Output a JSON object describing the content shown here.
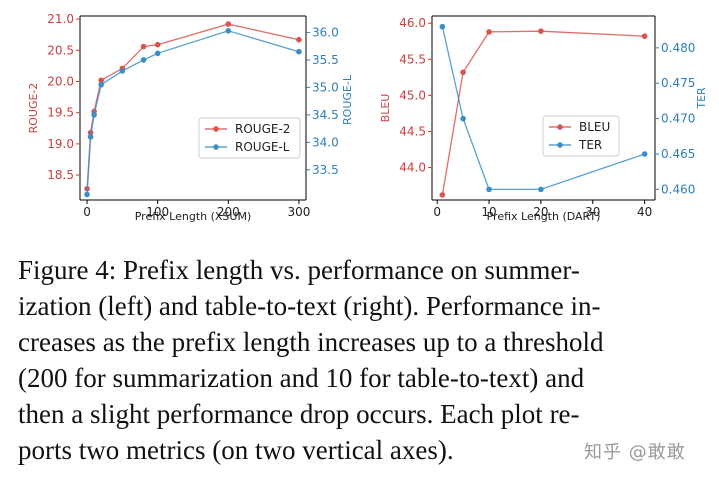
{
  "chart_data": [
    {
      "type": "line",
      "xlabel": "Prefix Length (XSUM)",
      "ylabel_left": "ROUGE-2",
      "ylabel_right": "ROUGE-L",
      "xlim": [
        -10,
        310
      ],
      "xticks": [
        0,
        100,
        200,
        300
      ],
      "ylim_left": [
        18.1,
        21.05
      ],
      "yticks_left": [
        18.5,
        19.0,
        19.5,
        20.0,
        20.5,
        21.0
      ],
      "ylim_right": [
        32.95,
        36.3
      ],
      "yticks_right": [
        33.5,
        34.0,
        34.5,
        35.0,
        35.5,
        36.0
      ],
      "legend_position": "lower-right",
      "grid": false,
      "series": [
        {
          "name": "ROUGE-2",
          "axis": "left",
          "color": "#d9534f",
          "x": [
            0,
            5,
            10,
            20,
            50,
            80,
            100,
            200,
            300
          ],
          "y": [
            18.28,
            19.18,
            19.52,
            20.02,
            20.21,
            20.56,
            20.59,
            20.92,
            20.67
          ]
        },
        {
          "name": "ROUGE-L",
          "axis": "right",
          "color": "#3b8fc4",
          "x": [
            0,
            5,
            10,
            20,
            50,
            80,
            100,
            200,
            300
          ],
          "y": [
            33.05,
            34.1,
            34.5,
            35.05,
            35.3,
            35.5,
            35.62,
            36.03,
            35.65
          ]
        }
      ]
    },
    {
      "type": "line",
      "xlabel": "Prefix Length (DART)",
      "ylabel_left": "BLEU",
      "ylabel_right": "TER",
      "xlim": [
        -1,
        42
      ],
      "xticks": [
        0,
        10,
        20,
        30,
        40
      ],
      "ylim_left": [
        43.55,
        46.1
      ],
      "yticks_left": [
        44.0,
        44.5,
        45.0,
        45.5,
        46.0
      ],
      "ylim_right": [
        0.4585,
        0.4845
      ],
      "yticks_right": [
        0.46,
        0.465,
        0.47,
        0.475,
        0.48
      ],
      "legend_position": "center-right",
      "grid": false,
      "series": [
        {
          "name": "BLEU",
          "axis": "left",
          "color": "#d9534f",
          "x": [
            1,
            5,
            10,
            20,
            40
          ],
          "y": [
            43.62,
            45.32,
            45.88,
            45.89,
            45.82
          ]
        },
        {
          "name": "TER",
          "axis": "right",
          "color": "#3b8fc4",
          "x": [
            1,
            5,
            10,
            20,
            40
          ],
          "y": [
            0.483,
            0.47,
            0.46,
            0.46,
            0.465
          ]
        }
      ]
    }
  ],
  "caption": {
    "lines": [
      "Figure 4:   Prefix length vs. performance on summer-",
      "ization (left) and table-to-text (right).  Performance in-",
      "creases as the prefix length increases up to a threshold",
      "(200 for summarization and 10 for table-to-text) and",
      "then a slight performance drop occurs.  Each plot re-",
      "ports two metrics (on two vertical axes)."
    ]
  },
  "watermark": "知乎 @敢敢"
}
